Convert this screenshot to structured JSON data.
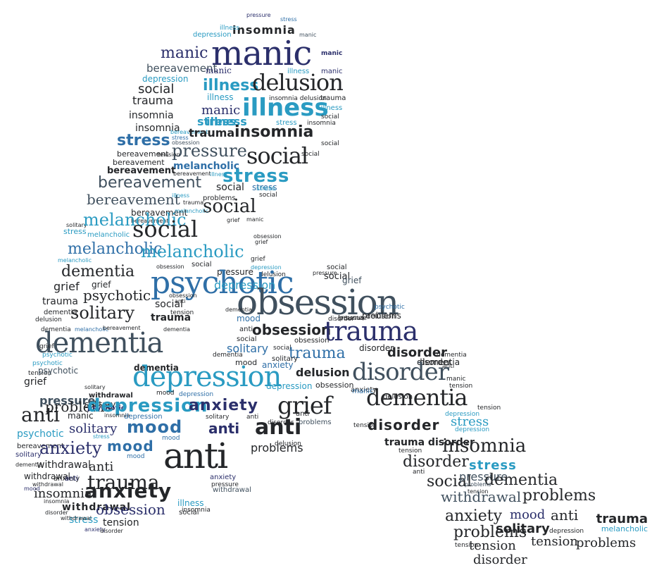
{
  "colors": {
    "navy": "#2b2f6b",
    "blue": "#2f6fa7",
    "teal": "#2a9bc2",
    "slate": "#40505e",
    "charcoal": "#242629"
  },
  "words": [
    {
      "text": "pressure",
      "color": "navy"
    },
    {
      "text": "insomnia",
      "color": "charcoal"
    },
    {
      "text": "stress",
      "color": "blue"
    },
    {
      "text": "depression",
      "color": "teal"
    },
    {
      "text": "illness",
      "color": "teal"
    },
    {
      "text": "manic",
      "color": "slate"
    },
    {
      "text": "manic",
      "color": "navy"
    },
    {
      "text": "manic",
      "color": "navy"
    },
    {
      "text": "manic",
      "color": "navy"
    },
    {
      "text": "bereavement",
      "color": "slate"
    },
    {
      "text": "depression",
      "color": "teal"
    },
    {
      "text": "manic",
      "color": "navy"
    },
    {
      "text": "illness",
      "color": "teal"
    },
    {
      "text": "manic",
      "color": "navy"
    },
    {
      "text": "illness",
      "color": "teal"
    },
    {
      "text": "delusion",
      "color": "charcoal"
    },
    {
      "text": "social",
      "color": "charcoal"
    },
    {
      "text": "trauma",
      "color": "charcoal"
    },
    {
      "text": "illness",
      "color": "teal"
    },
    {
      "text": "insomnia delusion",
      "color": "charcoal"
    },
    {
      "text": "trauma",
      "color": "charcoal"
    },
    {
      "text": "manic",
      "color": "navy"
    },
    {
      "text": "illness",
      "color": "teal"
    },
    {
      "text": "insomnia",
      "color": "charcoal"
    },
    {
      "text": "stress",
      "color": "teal"
    },
    {
      "text": "illness",
      "color": "teal"
    },
    {
      "text": "social",
      "color": "charcoal"
    },
    {
      "text": "insomnia",
      "color": "charcoal"
    },
    {
      "text": "stress",
      "color": "blue"
    },
    {
      "text": "bereavement",
      "color": "teal"
    },
    {
      "text": "illness",
      "color": "teal"
    },
    {
      "text": "insomnia",
      "color": "charcoal"
    },
    {
      "text": "stress",
      "color": "blue"
    },
    {
      "text": "trauma",
      "color": "charcoal"
    },
    {
      "text": "insomnia",
      "color": "charcoal"
    },
    {
      "text": "stress",
      "color": "teal"
    },
    {
      "text": "obsession",
      "color": "slate"
    },
    {
      "text": "pressure",
      "color": "slate"
    },
    {
      "text": "social",
      "color": "charcoal"
    },
    {
      "text": "social",
      "color": "charcoal"
    },
    {
      "text": "bereavement",
      "color": "charcoal"
    },
    {
      "text": "delusion",
      "color": "charcoal"
    },
    {
      "text": "social",
      "color": "charcoal"
    },
    {
      "text": "bereavement",
      "color": "charcoal"
    },
    {
      "text": "melancholic",
      "color": "blue"
    },
    {
      "text": "stress",
      "color": "teal"
    },
    {
      "text": "bereavement",
      "color": "charcoal"
    },
    {
      "text": "bereavement",
      "color": "charcoal"
    },
    {
      "text": "illness",
      "color": "teal"
    },
    {
      "text": "stress",
      "color": "blue"
    },
    {
      "text": "bereavement",
      "color": "slate"
    },
    {
      "text": "social",
      "color": "charcoal"
    },
    {
      "text": "stress",
      "color": "teal"
    },
    {
      "text": "social",
      "color": "charcoal"
    },
    {
      "text": "bereavement",
      "color": "slate"
    },
    {
      "text": "problems",
      "color": "charcoal"
    },
    {
      "text": "illness",
      "color": "teal"
    },
    {
      "text": "trauma",
      "color": "charcoal"
    },
    {
      "text": "bereavement",
      "color": "charcoal"
    },
    {
      "text": "melancholic",
      "color": "teal"
    },
    {
      "text": "social",
      "color": "charcoal"
    },
    {
      "text": "bereavement",
      "color": "charcoal"
    },
    {
      "text": "grief",
      "color": "charcoal"
    },
    {
      "text": "manic",
      "color": "charcoal"
    },
    {
      "text": "solitary",
      "color": "charcoal"
    },
    {
      "text": "melancholic",
      "color": "teal"
    },
    {
      "text": "stress",
      "color": "teal"
    },
    {
      "text": "melancholic",
      "color": "teal"
    },
    {
      "text": "social",
      "color": "charcoal"
    },
    {
      "text": "obsession",
      "color": "charcoal"
    },
    {
      "text": "melancholic",
      "color": "blue"
    },
    {
      "text": "grief",
      "color": "charcoal"
    },
    {
      "text": "melancholic",
      "color": "teal"
    },
    {
      "text": "melancholic",
      "color": "teal"
    },
    {
      "text": "dementia",
      "color": "charcoal"
    },
    {
      "text": "obsession",
      "color": "charcoal"
    },
    {
      "text": "social",
      "color": "charcoal"
    },
    {
      "text": "grief",
      "color": "charcoal"
    },
    {
      "text": "depression",
      "color": "teal"
    },
    {
      "text": "pressure",
      "color": "charcoal"
    },
    {
      "text": "social",
      "color": "charcoal"
    },
    {
      "text": "pressure",
      "color": "charcoal"
    },
    {
      "text": "social",
      "color": "charcoal"
    },
    {
      "text": "delusion",
      "color": "charcoal"
    },
    {
      "text": "grief",
      "color": "slate"
    },
    {
      "text": "grief",
      "color": "charcoal"
    },
    {
      "text": "psychotic",
      "color": "blue"
    },
    {
      "text": "grief",
      "color": "charcoal"
    },
    {
      "text": "depression",
      "color": "teal"
    },
    {
      "text": "psychotic",
      "color": "charcoal"
    },
    {
      "text": "obsession",
      "color": "charcoal"
    },
    {
      "text": "obsession",
      "color": "slate"
    },
    {
      "text": "social",
      "color": "charcoal"
    },
    {
      "text": "trauma",
      "color": "charcoal"
    },
    {
      "text": "anti",
      "color": "charcoal"
    },
    {
      "text": "dementia",
      "color": "charcoal"
    },
    {
      "text": "dementia",
      "color": "charcoal"
    },
    {
      "text": "solitary",
      "color": "charcoal"
    },
    {
      "text": "trauma",
      "color": "charcoal"
    },
    {
      "text": "tension",
      "color": "charcoal"
    },
    {
      "text": "psychotic",
      "color": "blue"
    },
    {
      "text": "delusion",
      "color": "charcoal"
    },
    {
      "text": "problems",
      "color": "charcoal"
    },
    {
      "text": "disorder",
      "color": "charcoal"
    },
    {
      "text": "trauma",
      "color": "charcoal"
    },
    {
      "text": "pressure",
      "color": "charcoal"
    },
    {
      "text": "delusion",
      "color": "charcoal"
    },
    {
      "text": "dementia",
      "color": "charcoal"
    },
    {
      "text": "melancholic",
      "color": "blue"
    },
    {
      "text": "bereavement",
      "color": "charcoal"
    },
    {
      "text": "dementia",
      "color": "charcoal"
    },
    {
      "text": "mood",
      "color": "blue"
    },
    {
      "text": "anti",
      "color": "charcoal"
    },
    {
      "text": "obsession",
      "color": "charcoal"
    },
    {
      "text": "trauma",
      "color": "navy"
    },
    {
      "text": "dementia",
      "color": "slate"
    },
    {
      "text": "social",
      "color": "charcoal"
    },
    {
      "text": "obsession",
      "color": "charcoal"
    },
    {
      "text": "grief",
      "color": "charcoal"
    },
    {
      "text": "solitary",
      "color": "blue"
    },
    {
      "text": "social",
      "color": "charcoal"
    },
    {
      "text": "trauma",
      "color": "blue"
    },
    {
      "text": "disorder",
      "color": "charcoal"
    },
    {
      "text": "disorder",
      "color": "charcoal"
    },
    {
      "text": "psychotic",
      "color": "teal"
    },
    {
      "text": "psychotic",
      "color": "teal"
    },
    {
      "text": "solitary",
      "color": "charcoal"
    },
    {
      "text": "dementia",
      "color": "charcoal"
    },
    {
      "text": "mood",
      "color": "charcoal"
    },
    {
      "text": "dementia",
      "color": "charcoal"
    },
    {
      "text": "disorder",
      "color": "charcoal"
    },
    {
      "text": "tension",
      "color": "charcoal"
    },
    {
      "text": "dementia",
      "color": "charcoal"
    },
    {
      "text": "psychotic",
      "color": "slate"
    },
    {
      "text": "dementia",
      "color": "charcoal"
    },
    {
      "text": "depression",
      "color": "teal"
    },
    {
      "text": "anxiety",
      "color": "blue"
    },
    {
      "text": "anti",
      "color": "charcoal"
    },
    {
      "text": "delusion",
      "color": "charcoal"
    },
    {
      "text": "disorder",
      "color": "slate"
    },
    {
      "text": "grief",
      "color": "charcoal"
    },
    {
      "text": "depression",
      "color": "teal"
    },
    {
      "text": "obsession",
      "color": "charcoal"
    },
    {
      "text": "manic",
      "color": "charcoal"
    },
    {
      "text": "tension",
      "color": "charcoal"
    },
    {
      "text": "solitary",
      "color": "charcoal"
    },
    {
      "text": "withdrawal",
      "color": "charcoal"
    },
    {
      "text": "mood",
      "color": "charcoal"
    },
    {
      "text": "depression",
      "color": "blue"
    },
    {
      "text": "anxiety",
      "color": "charcoal"
    },
    {
      "text": "manic",
      "color": "blue"
    },
    {
      "text": "pressure",
      "color": "slate"
    },
    {
      "text": "dementia",
      "color": "charcoal"
    },
    {
      "text": "delusion",
      "color": "charcoal"
    },
    {
      "text": "problems",
      "color": "charcoal"
    },
    {
      "text": "solitary",
      "color": "charcoal"
    },
    {
      "text": "psychotic",
      "color": "navy"
    },
    {
      "text": "depression",
      "color": "teal"
    },
    {
      "text": "anxiety",
      "color": "navy"
    },
    {
      "text": "grief",
      "color": "charcoal"
    },
    {
      "text": "anti",
      "color": "charcoal"
    },
    {
      "text": "manic",
      "color": "charcoal"
    },
    {
      "text": "insomnia",
      "color": "charcoal"
    },
    {
      "text": "depression",
      "color": "blue"
    },
    {
      "text": "solitary",
      "color": "charcoal"
    },
    {
      "text": "anti",
      "color": "charcoal"
    },
    {
      "text": "anti",
      "color": "charcoal"
    },
    {
      "text": "disorder",
      "color": "charcoal"
    },
    {
      "text": "tension",
      "color": "charcoal"
    },
    {
      "text": "depression",
      "color": "teal"
    },
    {
      "text": "psychotic",
      "color": "teal"
    },
    {
      "text": "solitary",
      "color": "navy"
    },
    {
      "text": "mood",
      "color": "blue"
    },
    {
      "text": "anti",
      "color": "navy"
    },
    {
      "text": "anti",
      "color": "charcoal"
    },
    {
      "text": "problems",
      "color": "slate"
    },
    {
      "text": "disorder",
      "color": "charcoal"
    },
    {
      "text": "stress",
      "color": "teal"
    },
    {
      "text": "bereavement",
      "color": "charcoal"
    },
    {
      "text": "stress",
      "color": "teal"
    },
    {
      "text": "solitary",
      "color": "navy"
    },
    {
      "text": "mood",
      "color": "blue"
    },
    {
      "text": "anti",
      "color": "charcoal"
    },
    {
      "text": "problems",
      "color": "charcoal"
    },
    {
      "text": "tension",
      "color": "charcoal"
    },
    {
      "text": "depression",
      "color": "teal"
    },
    {
      "text": "anxiety",
      "color": "navy"
    },
    {
      "text": "mood",
      "color": "blue"
    },
    {
      "text": "trauma disorder",
      "color": "charcoal"
    },
    {
      "text": "tension",
      "color": "charcoal"
    },
    {
      "text": "insomnia",
      "color": "charcoal"
    },
    {
      "text": "dementia",
      "color": "charcoal"
    },
    {
      "text": "withdrawal",
      "color": "charcoal"
    },
    {
      "text": "anti",
      "color": "charcoal"
    },
    {
      "text": "delusion",
      "color": "charcoal"
    },
    {
      "text": "disorder",
      "color": "charcoal"
    },
    {
      "text": "stress",
      "color": "teal"
    },
    {
      "text": "withdrawal",
      "color": "charcoal"
    },
    {
      "text": "anxiety",
      "color": "charcoal"
    },
    {
      "text": "mood",
      "color": "blue"
    },
    {
      "text": "trauma",
      "color": "charcoal"
    },
    {
      "text": "anti",
      "color": "navy"
    },
    {
      "text": "social",
      "color": "charcoal"
    },
    {
      "text": "pressure",
      "color": "slate"
    },
    {
      "text": "dementia",
      "color": "charcoal"
    },
    {
      "text": "withdrawal",
      "color": "charcoal"
    },
    {
      "text": "anxiety",
      "color": "charcoal"
    },
    {
      "text": "anxiety",
      "color": "navy"
    },
    {
      "text": "insomnia",
      "color": "charcoal"
    },
    {
      "text": "pressure",
      "color": "charcoal"
    },
    {
      "text": "withdrawal",
      "color": "slate"
    },
    {
      "text": "anti",
      "color": "charcoal"
    },
    {
      "text": "problems",
      "color": "slate"
    },
    {
      "text": "tension",
      "color": "charcoal"
    },
    {
      "text": "problems",
      "color": "charcoal"
    },
    {
      "text": "mood",
      "color": "navy"
    },
    {
      "text": "withdrawal",
      "color": "slate"
    },
    {
      "text": "insomnia",
      "color": "charcoal"
    },
    {
      "text": "withdrawal",
      "color": "charcoal"
    },
    {
      "text": "obsession",
      "color": "navy"
    },
    {
      "text": "illness",
      "color": "teal"
    },
    {
      "text": "disorder",
      "color": "charcoal"
    },
    {
      "text": "stress",
      "color": "teal"
    },
    {
      "text": "anxiety",
      "color": "charcoal"
    },
    {
      "text": "mood",
      "color": "navy"
    },
    {
      "text": "anti",
      "color": "charcoal"
    },
    {
      "text": "trauma",
      "color": "charcoal"
    },
    {
      "text": "withdrawal",
      "color": "charcoal"
    },
    {
      "text": "social",
      "color": "charcoal"
    },
    {
      "text": "insomnia",
      "color": "charcoal"
    },
    {
      "text": "tension",
      "color": "charcoal"
    },
    {
      "text": "problems",
      "color": "charcoal"
    },
    {
      "text": "solitary",
      "color": "charcoal"
    },
    {
      "text": "depression",
      "color": "charcoal"
    },
    {
      "text": "melancholic",
      "color": "teal"
    },
    {
      "text": "anxiety",
      "color": "navy"
    },
    {
      "text": "disorder",
      "color": "charcoal"
    },
    {
      "text": "tension",
      "color": "charcoal"
    },
    {
      "text": "tension",
      "color": "charcoal"
    },
    {
      "text": "problems",
      "color": "charcoal"
    },
    {
      "text": "tension",
      "color": "charcoal"
    },
    {
      "text": "disorder",
      "color": "charcoal"
    }
  ]
}
